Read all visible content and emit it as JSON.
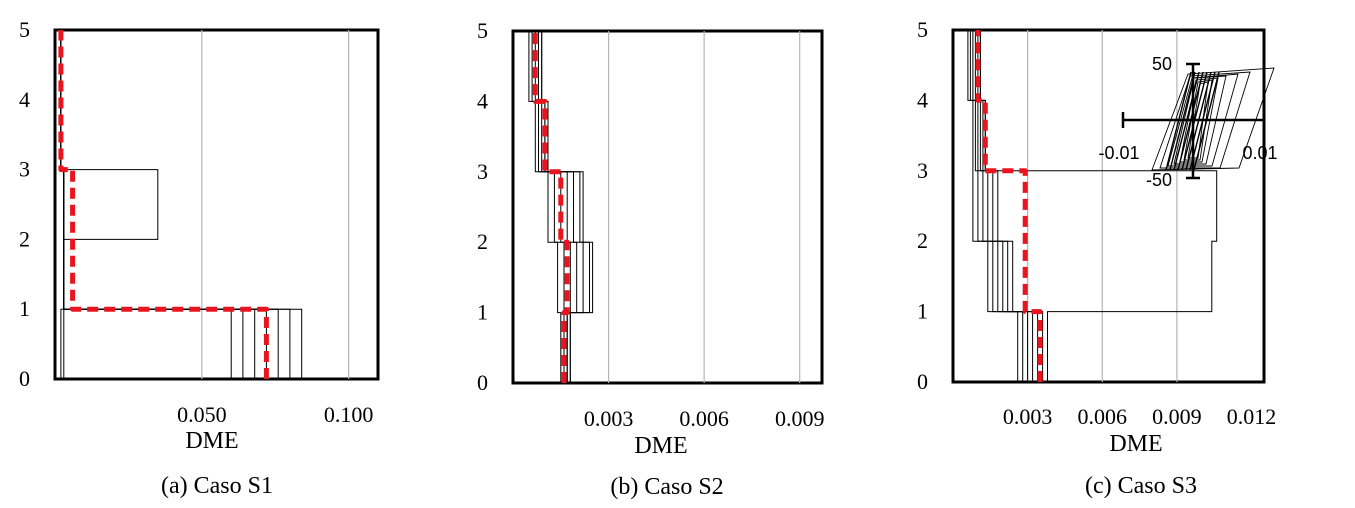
{
  "figure": {
    "panels": [
      {
        "caption": "(a) Caso S1",
        "xlabel": "DME",
        "xlim": [
          0,
          0.11
        ],
        "ylim": [
          0,
          5
        ],
        "xticks": [
          0.05,
          0.1
        ],
        "xtick_labels": [
          "0.050",
          "0.100"
        ],
        "yticks": [
          0,
          1,
          2,
          3,
          4,
          5
        ],
        "ytick_labels": [
          "0",
          "1",
          "2",
          "3",
          "4",
          "5"
        ],
        "gridlines_x": [
          0.05,
          0.1
        ]
      },
      {
        "caption": "(b) Caso S2",
        "xlabel": "DME",
        "xlim": [
          0,
          0.0097
        ],
        "ylim": [
          0,
          5
        ],
        "xticks": [
          0.003,
          0.006,
          0.009
        ],
        "xtick_labels": [
          "0.003",
          "0.006",
          "0.009"
        ],
        "yticks": [
          0,
          1,
          2,
          3,
          4,
          5
        ],
        "ytick_labels": [
          "0",
          "1",
          "2",
          "3",
          "4",
          "5"
        ],
        "gridlines_x": [
          0.003,
          0.006,
          0.009
        ]
      },
      {
        "caption": "(c) Caso S3",
        "xlabel": "DME",
        "xlim": [
          0,
          0.0125
        ],
        "ylim": [
          0,
          5
        ],
        "xticks": [
          0.003,
          0.006,
          0.009,
          0.012
        ],
        "xtick_labels": [
          "0.003",
          "0.006",
          "0.009",
          "0.012"
        ],
        "yticks": [
          0,
          1,
          2,
          3,
          4,
          5
        ],
        "ytick_labels": [
          "0",
          "1",
          "2",
          "3",
          "4",
          "5"
        ],
        "gridlines_x": [
          0.003,
          0.006,
          0.009
        ],
        "inset": {
          "xtick_labels": [
            "-0.01",
            "0.01"
          ],
          "ytick_labels": [
            "50",
            "-50"
          ]
        }
      }
    ]
  },
  "chart_data": [
    {
      "type": "line",
      "xlabel": "DME",
      "ylabel": "",
      "xlim": [
        0,
        0.11
      ],
      "ylim": [
        0,
        5
      ],
      "series": [
        {
          "kind": "thin",
          "color": "#000000",
          "profiles": [
            [
              0.002,
              0.003,
              0.003,
              0.002,
              0.002,
              0.002
            ],
            [
              0.003,
              0.003,
              0.035,
              0.002,
              0.002,
              0.002
            ],
            [
              0.06,
              0.003,
              0.003,
              0.002,
              0.002,
              0.002
            ],
            [
              0.064,
              0.003,
              0.003,
              0.002,
              0.002,
              0.002
            ],
            [
              0.068,
              0.003,
              0.003,
              0.002,
              0.002,
              0.002
            ],
            [
              0.072,
              0.003,
              0.003,
              0.002,
              0.002,
              0.002
            ],
            [
              0.076,
              0.003,
              0.003,
              0.002,
              0.002,
              0.002
            ],
            [
              0.08,
              0.003,
              0.003,
              0.002,
              0.002,
              0.002
            ],
            [
              0.084,
              0.003,
              0.003,
              0.002,
              0.002,
              0.002
            ]
          ]
        },
        {
          "kind": "mean",
          "color": "#e8141e",
          "values": [
            0.072,
            0.006,
            0.006,
            0.002,
            0.002,
            0.002
          ]
        }
      ]
    },
    {
      "type": "line",
      "xlabel": "DME",
      "ylabel": "",
      "xlim": [
        0,
        0.0097
      ],
      "ylim": [
        0,
        5
      ],
      "series": [
        {
          "kind": "thin",
          "color": "#000000",
          "profiles": [
            [
              0.0015,
              0.0014,
              0.0011,
              0.0007,
              0.0005,
              0.0005
            ],
            [
              0.0016,
              0.0016,
              0.0013,
              0.0008,
              0.0006,
              0.0006
            ],
            [
              0.0016,
              0.0018,
              0.0015,
              0.0009,
              0.0007,
              0.0007
            ],
            [
              0.0017,
              0.002,
              0.0017,
              0.001,
              0.0008,
              0.0008
            ],
            [
              0.0017,
              0.0022,
              0.0019,
              0.001,
              0.0008,
              0.0008
            ],
            [
              0.0018,
              0.0024,
              0.0021,
              0.0011,
              0.0009,
              0.0009
            ],
            [
              0.0018,
              0.0025,
              0.0022,
              0.0011,
              0.0009,
              0.0009
            ]
          ]
        },
        {
          "kind": "mean",
          "color": "#e8141e",
          "values": [
            0.0016,
            0.0017,
            0.0015,
            0.001,
            0.0007,
            0.0006
          ]
        }
      ]
    },
    {
      "type": "line",
      "xlabel": "DME",
      "ylabel": "",
      "xlim": [
        0,
        0.0125
      ],
      "ylim": [
        0,
        5
      ],
      "series": [
        {
          "kind": "thin",
          "color": "#000000",
          "profiles": [
            [
              0.0026,
              0.0014,
              0.0008,
              0.0008,
              0.0006,
              0.0006
            ],
            [
              0.0028,
              0.0016,
              0.001,
              0.0009,
              0.0007,
              0.0007
            ],
            [
              0.003,
              0.0018,
              0.0012,
              0.001,
              0.0008,
              0.0008
            ],
            [
              0.0032,
              0.002,
              0.0014,
              0.0011,
              0.0009,
              0.0009
            ],
            [
              0.0034,
              0.0022,
              0.0016,
              0.0012,
              0.001,
              0.001
            ],
            [
              0.0036,
              0.0024,
              0.0018,
              0.0013,
              0.0011,
              0.0011
            ],
            [
              0.0038,
              0.0104,
              0.0106,
              0.0013,
              0.0011,
              0.0011
            ]
          ]
        },
        {
          "kind": "mean",
          "color": "#e8141e",
          "values": [
            0.0035,
            0.0029,
            0.0029,
            0.0013,
            0.001,
            0.0009
          ]
        }
      ]
    }
  ]
}
